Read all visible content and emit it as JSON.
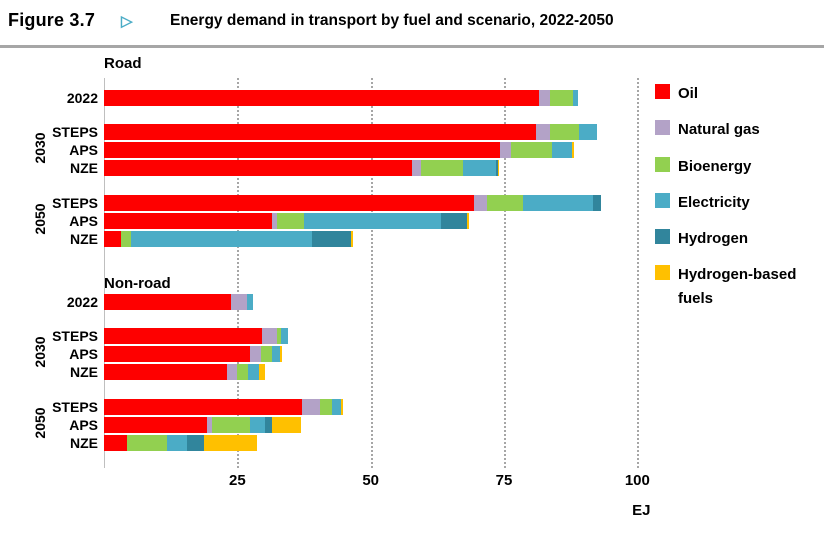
{
  "figure": {
    "label": "Figure 3.7",
    "arrow": "▷",
    "title": "Energy demand in transport by fuel and scenario, 2022-2050",
    "rule_color": "#a6a6a6",
    "arrow_color": "#4bacc6"
  },
  "axis": {
    "ticks": [
      "25",
      "50",
      "75",
      "100"
    ],
    "tick_values": [
      25,
      50,
      75,
      100
    ],
    "unit": "EJ",
    "gridline_color": "#a6a6a6",
    "axis_line_color": "#bfbfbf"
  },
  "legend": {
    "items": [
      {
        "label": "Oil",
        "color": "#fe0000"
      },
      {
        "label": "Natural gas",
        "color": "#b3a2c7"
      },
      {
        "label": "Bioenergy",
        "color": "#92d050"
      },
      {
        "label": "Electricity",
        "color": "#4bacc6"
      },
      {
        "label": "Hydrogen",
        "color": "#31859c"
      },
      {
        "label": "Hydrogen-based fuels",
        "color": "#ffc000"
      }
    ]
  },
  "chart_data": {
    "type": "bar",
    "orientation": "horizontal",
    "stacked": true,
    "title": "Energy demand in transport by fuel and scenario, 2022-2050",
    "xlabel": "EJ",
    "xlim": [
      0,
      135
    ],
    "xticks": [
      25,
      50,
      75,
      100
    ],
    "grid": "dotted-vertical",
    "legend_position": "right",
    "fuels": [
      "Oil",
      "Natural gas",
      "Bioenergy",
      "Electricity",
      "Hydrogen",
      "Hydrogen-based fuels"
    ],
    "fuel_colors": [
      "#fe0000",
      "#b3a2c7",
      "#92d050",
      "#4bacc6",
      "#31859c",
      "#ffc000"
    ],
    "panels": [
      {
        "label": "Road",
        "groups": [
          {
            "label": "",
            "rows": [
              {
                "label": "2022",
                "values": [
                  81.5,
                  2.2,
                  4.3,
                  0.8,
                  0,
                  0
                ],
                "total": 88.8
              }
            ]
          },
          {
            "label": "2030",
            "rows": [
              {
                "label": "STEPS",
                "values": [
                  81.0,
                  2.6,
                  5.5,
                  3.4,
                  0,
                  0
                ],
                "total": 92.5
              },
              {
                "label": "APS",
                "values": [
                  74.3,
                  2.0,
                  7.7,
                  3.8,
                  0,
                  0.4
                ],
                "total": 88.2
              },
              {
                "label": "NZE",
                "values": [
                  57.8,
                  1.6,
                  7.9,
                  6.2,
                  0.3,
                  0.3
                ],
                "total": 74.1
              }
            ]
          },
          {
            "label": "2050",
            "rows": [
              {
                "label": "STEPS",
                "values": [
                  69.4,
                  2.4,
                  6.8,
                  13.1,
                  1.5,
                  0
                ],
                "total": 93.2
              },
              {
                "label": "APS",
                "values": [
                  31.5,
                  0.9,
                  5.1,
                  25.7,
                  4.9,
                  0.4
                ],
                "total": 68.5
              },
              {
                "label": "NZE",
                "values": [
                  3.2,
                  0,
                  1.9,
                  33.9,
                  7.3,
                  0.3
                ],
                "total": 46.6
              }
            ]
          }
        ]
      },
      {
        "label": "Non-road",
        "groups": [
          {
            "label": "",
            "rows": [
              {
                "label": "2022",
                "values": [
                  23.8,
                  3.0,
                  0,
                  1.2,
                  0,
                  0
                ],
                "total": 28.0
              }
            ]
          },
          {
            "label": "2030",
            "rows": [
              {
                "label": "STEPS",
                "values": [
                  29.6,
                  2.8,
                  0.8,
                  1.3,
                  0,
                  0
                ],
                "total": 34.5
              },
              {
                "label": "APS",
                "values": [
                  27.4,
                  2.0,
                  2.1,
                  1.5,
                  0,
                  0.4
                ],
                "total": 33.4
              },
              {
                "label": "NZE",
                "values": [
                  23.1,
                  1.8,
                  2.1,
                  2.1,
                  0,
                  1.1
                ],
                "total": 30.2
              }
            ]
          },
          {
            "label": "2050",
            "rows": [
              {
                "label": "STEPS",
                "values": [
                  37.1,
                  3.4,
                  2.3,
                  1.6,
                  0,
                  0.4
                ],
                "total": 44.8
              },
              {
                "label": "APS",
                "values": [
                  19.3,
                  1.0,
                  7.1,
                  2.8,
                  1.3,
                  5.4
                ],
                "total": 36.9
              },
              {
                "label": "NZE",
                "values": [
                  4.4,
                  0,
                  7.5,
                  3.6,
                  3.2,
                  10.0
                ],
                "total": 28.7
              }
            ]
          }
        ]
      }
    ]
  }
}
